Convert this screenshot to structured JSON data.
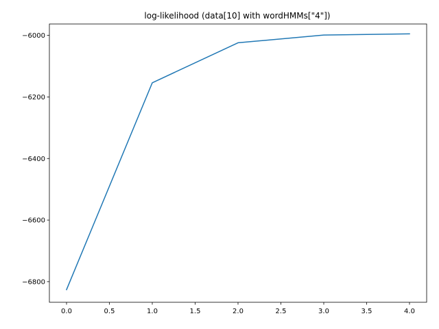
{
  "chart_data": {
    "type": "line",
    "title": "log-likelihood (data[10] with wordHMMs[\"4\"])",
    "xlabel": "",
    "ylabel": "",
    "x": [
      0,
      1,
      2,
      3,
      4
    ],
    "series": [
      {
        "values": [
          -6826,
          -6154,
          -6024,
          -5999,
          -5995
        ]
      }
    ],
    "xlim": [
      -0.2,
      4.2
    ],
    "ylim": [
      -6867,
      -5963
    ],
    "xticks": [
      0.0,
      0.5,
      1.0,
      1.5,
      2.0,
      2.5,
      3.0,
      3.5,
      4.0
    ],
    "xtick_labels": [
      "0.0",
      "0.5",
      "1.0",
      "1.5",
      "2.0",
      "2.5",
      "3.0",
      "3.5",
      "4.0"
    ],
    "yticks": [
      -6800,
      -6600,
      -6400,
      -6200,
      -6000
    ],
    "ytick_labels": [
      "−6800",
      "−6600",
      "−6400",
      "−6200",
      "−6000"
    ],
    "grid": false,
    "legend": "none",
    "line_color": "#1f77b4"
  }
}
